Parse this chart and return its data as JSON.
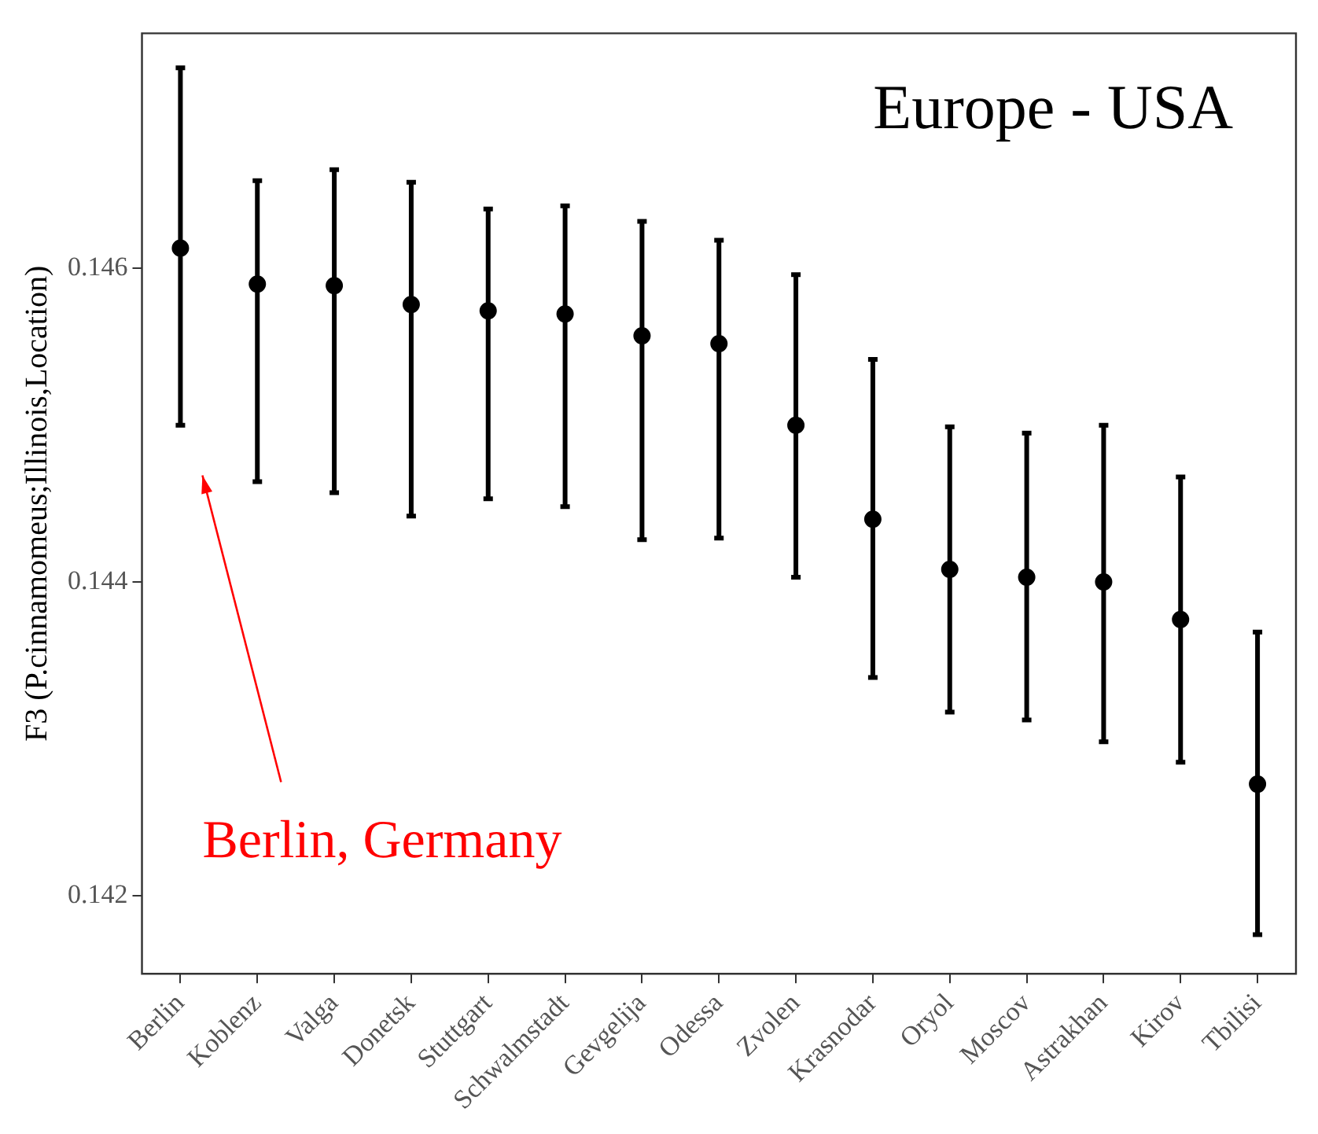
{
  "chart_data": {
    "type": "scatter",
    "ylabel": "F3 (P.cinnamomeus;Illinois,Location)",
    "categories": [
      "Berlin",
      "Koblenz",
      "Valga",
      "Donetsk",
      "Stuttgart",
      "Schwalmstadt",
      "Gevgelija",
      "Odessa",
      "Zvolen",
      "Krasnodar",
      "Oryol",
      "Moscov",
      "Astrakhan",
      "Kirov",
      "Tbilisi"
    ],
    "series": [
      {
        "color": "#000000",
        "values": [
          0.14613,
          0.1459,
          0.14589,
          0.14577,
          0.14573,
          0.14571,
          0.14557,
          0.14552,
          0.145,
          0.1444,
          0.14408,
          0.14403,
          0.144,
          0.14376,
          0.14271
        ],
        "errors": [
          [
            0.145,
            0.14728
          ],
          [
            0.14464,
            0.14656
          ],
          [
            0.14457,
            0.14663
          ],
          [
            0.14442,
            0.14655
          ],
          [
            0.14453,
            0.14638
          ],
          [
            0.14448,
            0.1464
          ],
          [
            0.14427,
            0.1463
          ],
          [
            0.14428,
            0.14618
          ],
          [
            0.14403,
            0.14596
          ],
          [
            0.14339,
            0.14542
          ],
          [
            0.14317,
            0.14499
          ],
          [
            0.14312,
            0.14495
          ],
          [
            0.14298,
            0.145
          ],
          [
            0.14285,
            0.14467
          ],
          [
            0.14175,
            0.14368
          ]
        ]
      }
    ],
    "ylim": [
      0.1415,
      0.1475
    ],
    "yticks": [
      0.142,
      0.144,
      0.146
    ],
    "annotations": [
      "Europe - USA",
      "Berlin, Germany"
    ],
    "marker": "circle",
    "grid": false,
    "legend": false
  }
}
